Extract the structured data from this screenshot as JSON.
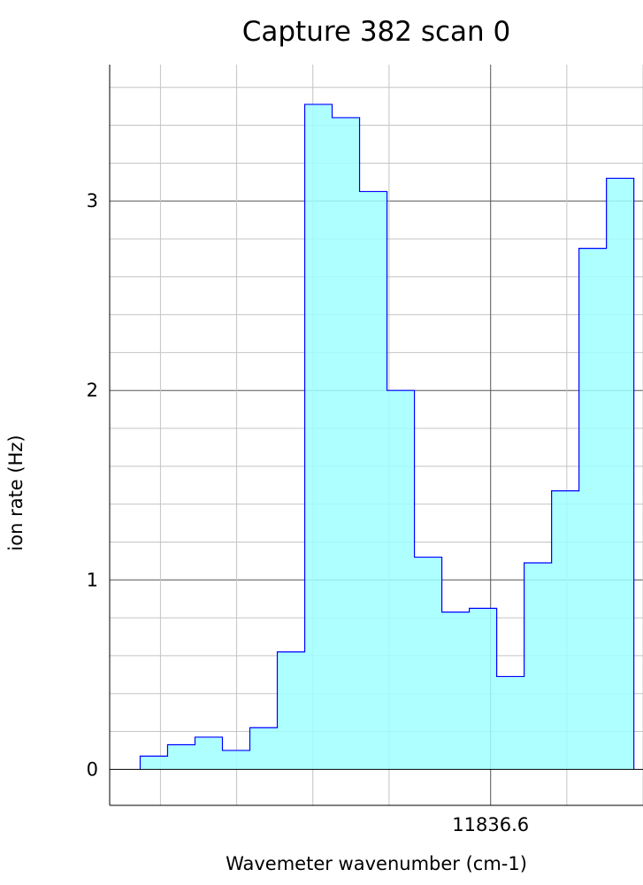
{
  "chart_data": {
    "type": "step-area",
    "title": "Capture 382 scan 0",
    "xlabel": "Wavemeter wavenumber (cm-1)",
    "ylabel": "ion rate (Hz)",
    "x_tick_labels": [
      {
        "value": 11836.6,
        "label": "11836.6"
      }
    ],
    "y_tick_labels": [
      {
        "value": 0,
        "label": "0"
      },
      {
        "value": 1,
        "label": "1"
      },
      {
        "value": 2,
        "label": "2"
      },
      {
        "value": 3,
        "label": "3"
      }
    ],
    "xlim": [
      11835.85,
      11836.9
    ],
    "ylim": [
      -0.19,
      3.72
    ],
    "x_major_ticks": [
      11836.6
    ],
    "x_minor_ticks": [
      11835.95,
      11836.1,
      11836.25,
      11836.4,
      11836.75,
      11836.9
    ],
    "y_minor_step": 0.2,
    "grid": true,
    "fill_color": "#a0ffff",
    "line_color": "#0000ff",
    "bins": [
      {
        "x0": 11835.91,
        "x1": 11835.964,
        "y": 0.07
      },
      {
        "x0": 11835.964,
        "x1": 11836.018,
        "y": 0.13
      },
      {
        "x0": 11836.018,
        "x1": 11836.072,
        "y": 0.17
      },
      {
        "x0": 11836.072,
        "x1": 11836.126,
        "y": 0.1
      },
      {
        "x0": 11836.126,
        "x1": 11836.18,
        "y": 0.22
      },
      {
        "x0": 11836.18,
        "x1": 11836.234,
        "y": 0.62
      },
      {
        "x0": 11836.234,
        "x1": 11836.288,
        "y": 3.51
      },
      {
        "x0": 11836.288,
        "x1": 11836.342,
        "y": 3.44
      },
      {
        "x0": 11836.342,
        "x1": 11836.396,
        "y": 3.05
      },
      {
        "x0": 11836.396,
        "x1": 11836.45,
        "y": 2.0
      },
      {
        "x0": 11836.45,
        "x1": 11836.504,
        "y": 1.12
      },
      {
        "x0": 11836.504,
        "x1": 11836.558,
        "y": 0.83
      },
      {
        "x0": 11836.558,
        "x1": 11836.612,
        "y": 0.85
      },
      {
        "x0": 11836.612,
        "x1": 11836.666,
        "y": 0.49
      },
      {
        "x0": 11836.666,
        "x1": 11836.72,
        "y": 1.09
      },
      {
        "x0": 11836.72,
        "x1": 11836.774,
        "y": 1.47
      },
      {
        "x0": 11836.774,
        "x1": 11836.828,
        "y": 2.75
      },
      {
        "x0": 11836.828,
        "x1": 11836.882,
        "y": 3.12
      }
    ]
  }
}
